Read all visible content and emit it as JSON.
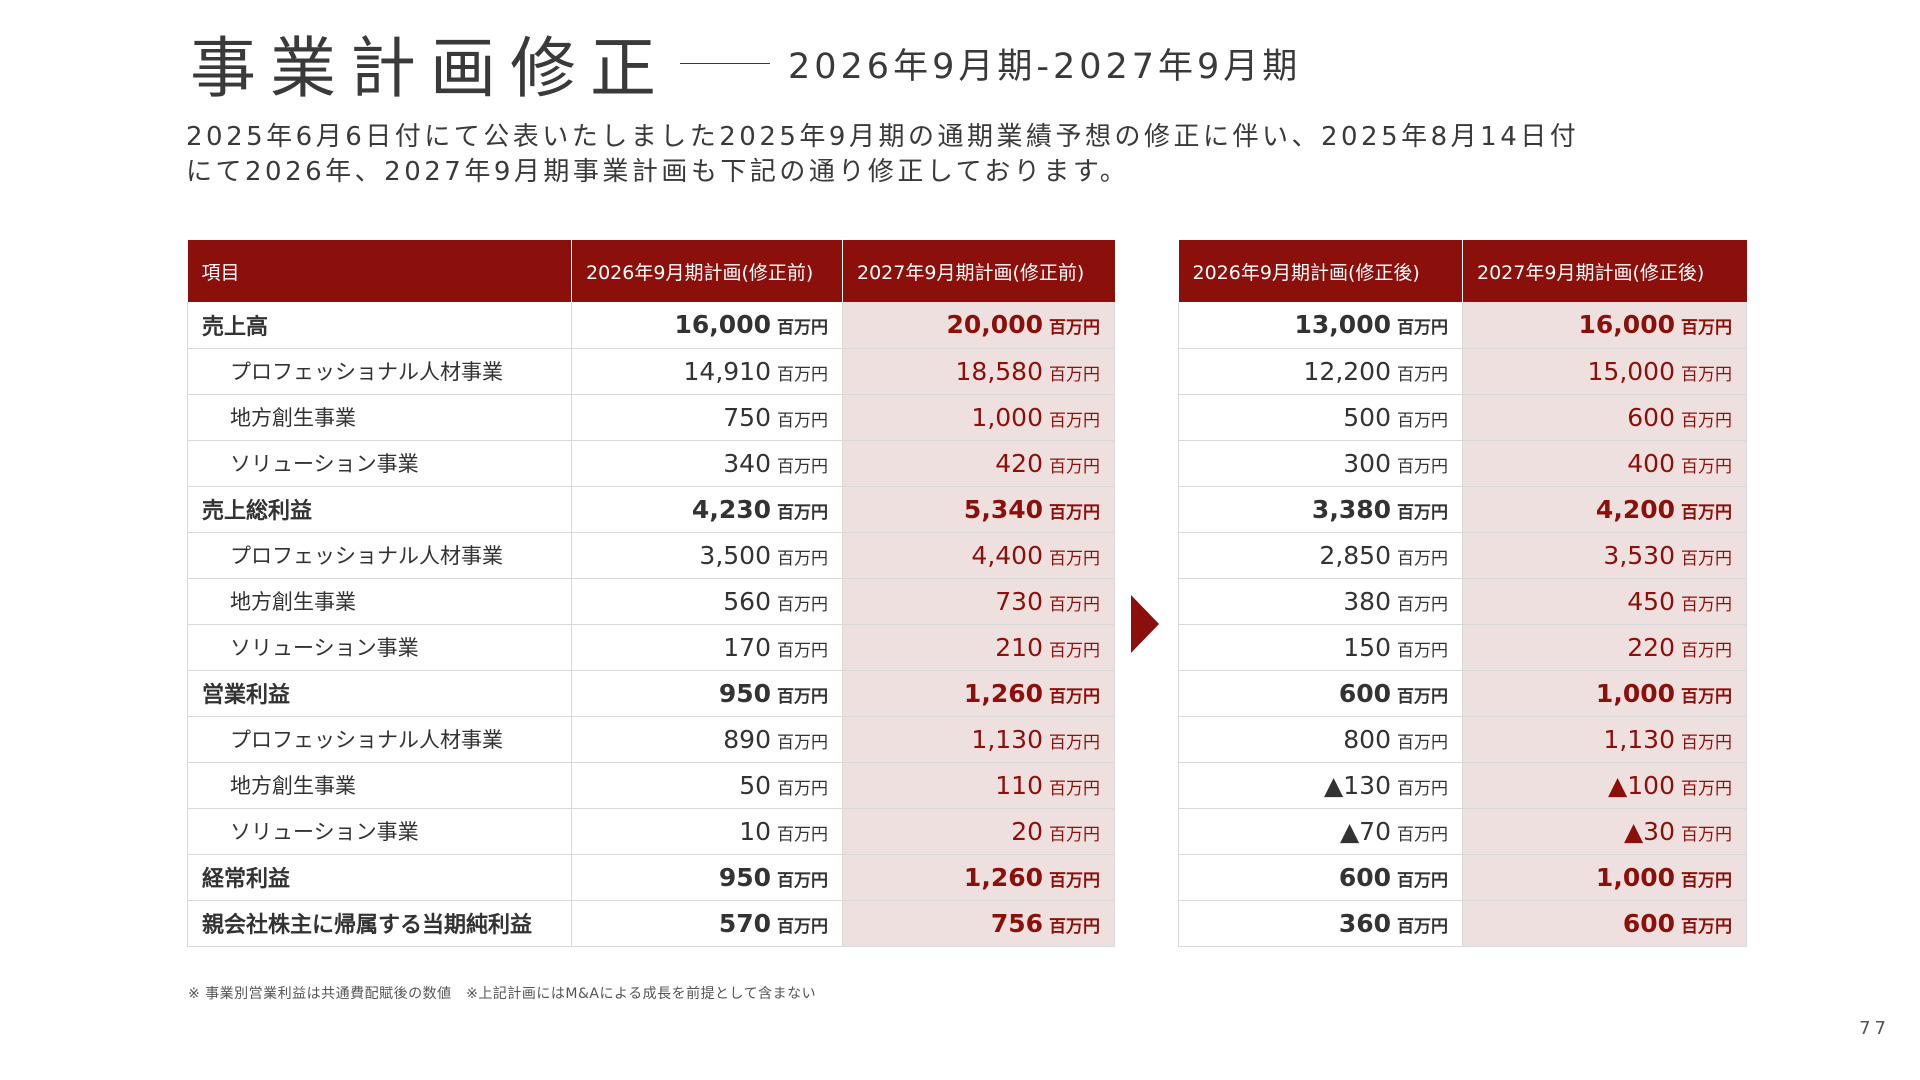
{
  "title": {
    "main": "事業計画修正",
    "sub": "2026年9月期-2027年9月期"
  },
  "intro": {
    "line1": "2025年6月6日付にて公表いたしました2025年9月期の通期業績予想の修正に伴い、2025年8月14日付",
    "line2": "にて2026年、2027年9月期事業計画も下記の通り修正しております。"
  },
  "table_left": {
    "headers": [
      "項目",
      "2026年9月期計画(修正前)",
      "2027年9月期計画(修正前)"
    ]
  },
  "table_right": {
    "headers": [
      "2026年9月期計画(修正後)",
      "2027年9月期計画(修正後)"
    ]
  },
  "unit": "百万円",
  "rows": [
    {
      "label": "売上高",
      "type": "main",
      "before_2026": "16,000",
      "before_2027": "20,000",
      "after_2026": "13,000",
      "after_2027": "16,000"
    },
    {
      "label": "プロフェッショナル人材事業",
      "type": "sub",
      "before_2026": "14,910",
      "before_2027": "18,580",
      "after_2026": "12,200",
      "after_2027": "15,000"
    },
    {
      "label": "地方創生事業",
      "type": "sub",
      "before_2026": "750",
      "before_2027": "1,000",
      "after_2026": "500",
      "after_2027": "600"
    },
    {
      "label": "ソリューション事業",
      "type": "sub",
      "before_2026": "340",
      "before_2027": "420",
      "after_2026": "300",
      "after_2027": "400"
    },
    {
      "label": "売上総利益",
      "type": "main",
      "before_2026": "4,230",
      "before_2027": "5,340",
      "after_2026": "3,380",
      "after_2027": "4,200"
    },
    {
      "label": "プロフェッショナル人材事業",
      "type": "sub",
      "before_2026": "3,500",
      "before_2027": "4,400",
      "after_2026": "2,850",
      "after_2027": "3,530"
    },
    {
      "label": "地方創生事業",
      "type": "sub",
      "before_2026": "560",
      "before_2027": "730",
      "after_2026": "380",
      "after_2027": "450"
    },
    {
      "label": "ソリューション事業",
      "type": "sub",
      "before_2026": "170",
      "before_2027": "210",
      "after_2026": "150",
      "after_2027": "220"
    },
    {
      "label": "営業利益",
      "type": "main",
      "before_2026": "950",
      "before_2027": "1,260",
      "after_2026": "600",
      "after_2027": "1,000"
    },
    {
      "label": "プロフェッショナル人材事業",
      "type": "sub",
      "before_2026": "890",
      "before_2027": "1,130",
      "after_2026": "800",
      "after_2027": "1,130"
    },
    {
      "label": "地方創生事業",
      "type": "sub",
      "before_2026": "50",
      "before_2027": "110",
      "after_2026": "▲130",
      "after_2027": "▲100"
    },
    {
      "label": "ソリューション事業",
      "type": "sub",
      "before_2026": "10",
      "before_2027": "20",
      "after_2026": "▲70",
      "after_2027": "▲30"
    },
    {
      "label": "経常利益",
      "type": "main",
      "before_2026": "950",
      "before_2027": "1,260",
      "after_2026": "600",
      "after_2027": "1,000"
    },
    {
      "label": "親会社株主に帰属する当期純利益",
      "type": "main",
      "before_2026": "570",
      "before_2027": "756",
      "after_2026": "360",
      "after_2027": "600"
    }
  ],
  "footnote": "※ 事業別営業利益は共通費配賦後の数値　※上記計画にはM&Aによる成長を前提として含まない",
  "page_number": "77",
  "colors": {
    "accent": "#8b0f0a",
    "highlight_bg": "#efe0e0",
    "text": "#333333"
  }
}
